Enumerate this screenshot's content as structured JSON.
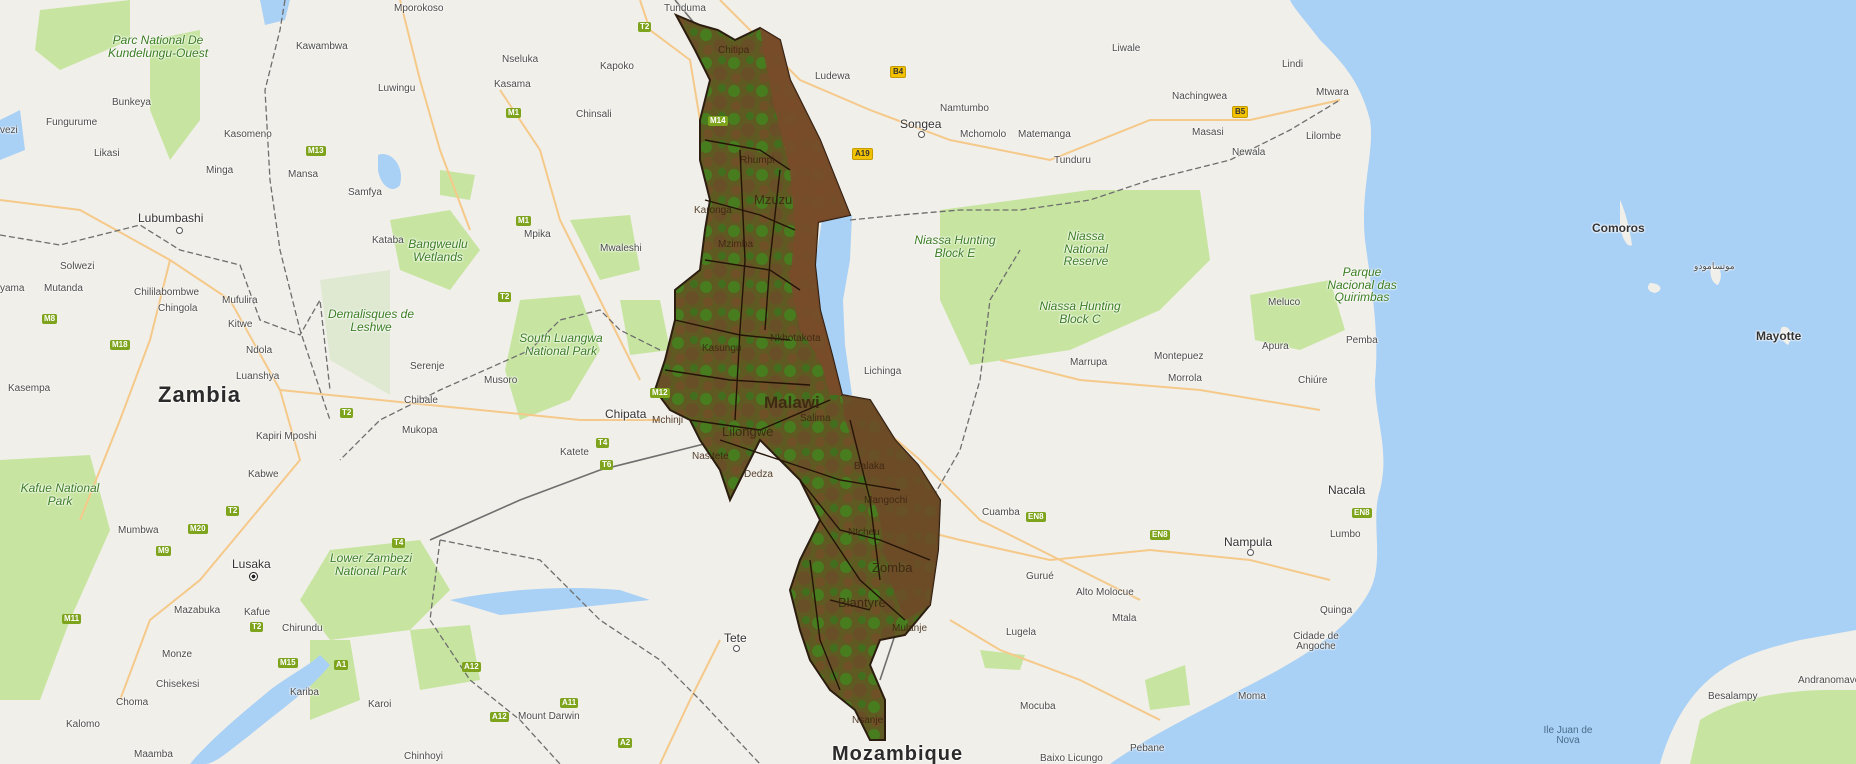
{
  "colors": {
    "land": "#f1efe9",
    "water": "#a9d0f5",
    "park": "#c7e5a1",
    "malawi_fill": "#7a4a2a",
    "malawi_green": "#3d8a1e",
    "road": "#f5c98a",
    "border": "#6e6e6e"
  },
  "labels": {
    "country_zambia": "Zambia",
    "country_malawi": "Malawi",
    "country_mozambique": "Mozambique",
    "city_lubumbashi": "Lubumbashi",
    "city_lusaka": "Lusaka",
    "city_chipata": "Chipata",
    "city_lilongwe": "Lilongwe",
    "city_songea": "Songea",
    "city_nampula": "Nampula",
    "city_nacala": "Nacala",
    "city_pemba": "Pemba",
    "city_tete": "Tete",
    "city_cuamba": "Cuamba",
    "city_lichinga": "Lichinga",
    "city_mtwara": "Mtwara",
    "city_kasama": "Kasama",
    "city_mansa": "Mansa",
    "city_likasi": "Likasi",
    "city_kitwe": "Kitwe",
    "city_ndola": "Ndola",
    "city_chingola": "Chingola",
    "city_kabwe": "Kabwe",
    "city_mazabuka": "Mazabuka",
    "small": {
      "mporokoso": "Mporokoso",
      "tunduma": "Tunduma",
      "kawambwa": "Kawambwa",
      "nseluka": "Nseluka",
      "kapoko": "Kapoko",
      "luwingu": "Luwingu",
      "chinsali": "Chinsali",
      "ludewa": "Ludewa",
      "namtumbo": "Namtumbo",
      "mchomolo": "Mchomolo",
      "matemanga": "Matemanga",
      "tunduru": "Tunduru",
      "liwale": "Liwale",
      "lindi": "Lindi",
      "nachingwea": "Nachingwea",
      "masasi": "Masasi",
      "newala": "Newala",
      "lilombe": "Lilombe",
      "fungurume": "Fungurume",
      "bunkeya": "Bunkeya",
      "kasomeno": "Kasomeno",
      "minga": "Minga",
      "samfya": "Samfya",
      "kataba": "Kataba",
      "mpika": "Mpika",
      "mwaleshi": "Mwaleshi",
      "solwezi": "Solwezi",
      "mutanda": "Mutanda",
      "chililabombwe": "Chililabombwe",
      "mufulira": "Mufulira",
      "luanshya": "Luanshya",
      "kasempa": "Kasempa",
      "serenje": "Serenje",
      "chibale": "Chibale",
      "mukopa": "Mukopa",
      "kapiri_mposhi": "Kapiri Mposhi",
      "musoro": "Musoro",
      "katete": "Katete",
      "mumbwa": "Mumbwa",
      "kafue": "Kafue",
      "chirundu": "Chirundu",
      "monze": "Monze",
      "chisekesi": "Chisekesi",
      "choma": "Choma",
      "kalomo": "Kalomo",
      "maamba": "Maamba",
      "kariba": "Kariba",
      "karoi": "Karoi",
      "mount_darwin": "Mount Darwin",
      "chinhoyi": "Chinhoyi",
      "marrupa": "Marrupa",
      "montepuez": "Montepuez",
      "morrola": "Morrola",
      "apura": "Apura",
      "meluco": "Meluco",
      "chiure": "Chiúre",
      "lumbo": "Lumbo",
      "gurue": "Gurué",
      "alto_molocue": "Alto Molocue",
      "mtala": "Mtala",
      "lugela": "Lugela",
      "mocuba": "Mocuba",
      "moma": "Moma",
      "quinga": "Quinga",
      "cidade_angoche": "Cidade de Angoche",
      "pebane": "Pebane",
      "baixo_licungo": "Baixo Licungo",
      "ile_juan_de_nova": "Ile Juan de Nova",
      "besalampy": "Besalampy",
      "andranomavo": "Andranomavo",
      "yama": "yama",
      "vezi": "vezi"
    },
    "islands": {
      "comoros": "Comoros",
      "mayotte": "Mayotte",
      "comoros_arabic": "موتسامودو"
    },
    "parks": {
      "kundelungu": "Parc National De Kundelungu-Ouest",
      "bangweulu": "Bangweulu Wetlands",
      "leshwe": "Demalisques de Leshwe",
      "south_luangwa": "South Luangwa National Park",
      "kafue": "Kafue National Park",
      "lower_zambezi": "Lower Zambezi National Park",
      "niassa_e": "Niassa Hunting Block E",
      "niassa_reserve": "Niassa National Reserve",
      "niassa_c": "Niassa Hunting Block C",
      "quirimbas": "Parque Nacional das Quirimbas"
    },
    "malawi_inside": {
      "chitipa": "Chitipa",
      "rumphi": "Rhumpi",
      "mzuzu": "Mzuzu",
      "karonga": "Karonga",
      "mzimba": "Mzimba",
      "kasungu": "Kasungu",
      "nkhotakota": "Nkhotakota",
      "salima": "Salima",
      "mchinji": "Mchinji",
      "nasitete": "Nasitete",
      "mangochi": "Mangochi",
      "ntcheu": "Ntcheu",
      "zomba": "Zomba",
      "blantyre": "Blantyre",
      "mulanje": "Mulanje",
      "nsanje": "Nsanje",
      "balaka": "Balaka",
      "dedza": "Dedza"
    }
  },
  "shields": [
    {
      "id": "t2-top",
      "text": "T2",
      "kind": "green"
    },
    {
      "id": "m1-a",
      "text": "M1",
      "kind": "green"
    },
    {
      "id": "m13",
      "text": "M13",
      "kind": "green"
    },
    {
      "id": "m14",
      "text": "M14",
      "kind": "green"
    },
    {
      "id": "m1-b",
      "text": "M1",
      "kind": "green"
    },
    {
      "id": "t2-mid",
      "text": "T2",
      "kind": "green"
    },
    {
      "id": "m8",
      "text": "M8",
      "kind": "green"
    },
    {
      "id": "m18",
      "text": "M18",
      "kind": "green"
    },
    {
      "id": "t2-low",
      "text": "T2",
      "kind": "green"
    },
    {
      "id": "m12",
      "text": "M12",
      "kind": "green"
    },
    {
      "id": "t4-a",
      "text": "T4",
      "kind": "green"
    },
    {
      "id": "t6",
      "text": "T6",
      "kind": "green"
    },
    {
      "id": "t2-b",
      "text": "T2",
      "kind": "green"
    },
    {
      "id": "m20",
      "text": "M20",
      "kind": "green"
    },
    {
      "id": "m9",
      "text": "M9",
      "kind": "green"
    },
    {
      "id": "t4-b",
      "text": "T4",
      "kind": "green"
    },
    {
      "id": "m11",
      "text": "M11",
      "kind": "green"
    },
    {
      "id": "t2-c",
      "text": "T2",
      "kind": "green"
    },
    {
      "id": "m15",
      "text": "M15",
      "kind": "green"
    },
    {
      "id": "a1",
      "text": "A1",
      "kind": "green"
    },
    {
      "id": "a12-a",
      "text": "A12",
      "kind": "green"
    },
    {
      "id": "a11",
      "text": "A11",
      "kind": "green"
    },
    {
      "id": "a12-b",
      "text": "A12",
      "kind": "green"
    },
    {
      "id": "a2",
      "text": "A2",
      "kind": "green"
    },
    {
      "id": "b4",
      "text": "B4",
      "kind": "yellow"
    },
    {
      "id": "a19",
      "text": "A19",
      "kind": "yellow"
    },
    {
      "id": "b5",
      "text": "B5",
      "kind": "yellow"
    },
    {
      "id": "en8-a",
      "text": "EN8",
      "kind": "green"
    },
    {
      "id": "en8-b",
      "text": "EN8",
      "kind": "green"
    },
    {
      "id": "en8-c",
      "text": "EN8",
      "kind": "green"
    }
  ]
}
